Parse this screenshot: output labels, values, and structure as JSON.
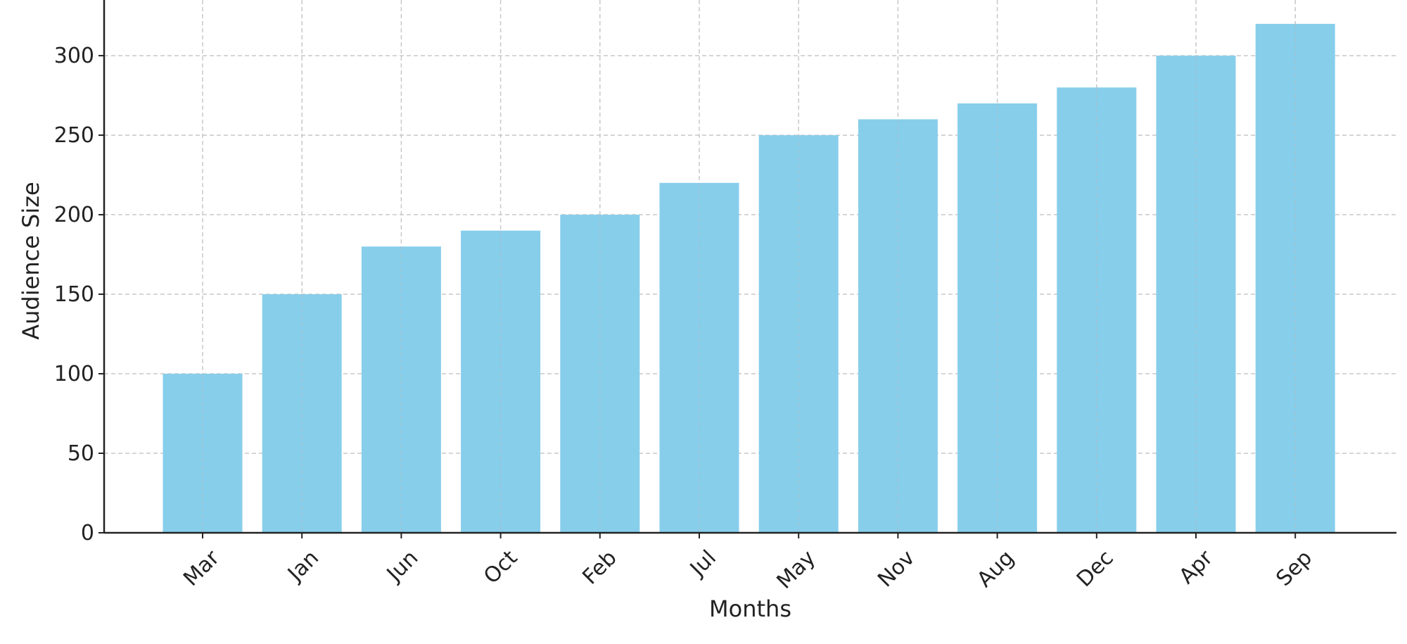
{
  "chart_data": {
    "type": "bar",
    "title": "",
    "xlabel": "Months",
    "ylabel": "Audience Size",
    "categories": [
      "Mar",
      "Jan",
      "Jun",
      "Oct",
      "Feb",
      "Jul",
      "May",
      "Nov",
      "Aug",
      "Dec",
      "Apr",
      "Sep"
    ],
    "values": [
      100,
      150,
      180,
      190,
      200,
      220,
      250,
      260,
      270,
      280,
      300,
      320
    ],
    "ylim": [
      0,
      335
    ],
    "yticks": [
      0,
      50,
      100,
      150,
      200,
      250,
      300
    ],
    "grid": true,
    "grid_style": "dashed",
    "legend": "none",
    "x_tick_rotation": 45,
    "colors": {
      "bar": "#87CEEB",
      "grid": "#c8c8c8",
      "axis": "#222222",
      "text": "#222222"
    }
  }
}
